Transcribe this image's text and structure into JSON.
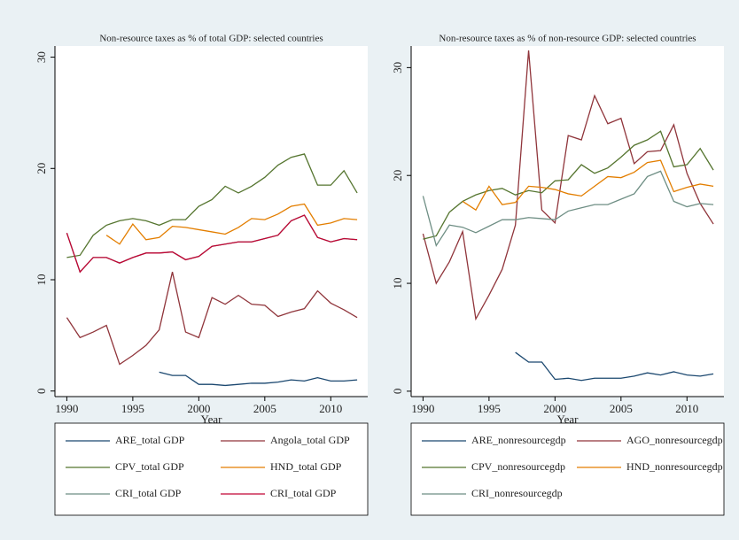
{
  "chart_data": [
    {
      "type": "line",
      "title": "Non-resource taxes as % of total GDP: selected countries",
      "x_label": "Year",
      "x": [
        1990,
        1991,
        1992,
        1993,
        1994,
        1995,
        1996,
        1997,
        1998,
        1999,
        2000,
        2001,
        2002,
        2003,
        2004,
        2005,
        2006,
        2007,
        2008,
        2009,
        2010,
        2011,
        2012
      ],
      "xlim": [
        1989.1,
        2012.8
      ],
      "xticks": [
        1990,
        1995,
        2000,
        2005,
        2010
      ],
      "ylim": [
        -0.5,
        31
      ],
      "yticks": [
        0,
        10,
        20,
        30
      ],
      "series": [
        {
          "name": "ARE_total GDP",
          "color": "#1a476f",
          "values": [
            null,
            null,
            null,
            null,
            null,
            null,
            null,
            1.7,
            1.4,
            1.4,
            0.6,
            0.6,
            0.5,
            0.6,
            0.7,
            0.7,
            0.8,
            1.0,
            0.9,
            1.2,
            0.9,
            0.9,
            1.0
          ]
        },
        {
          "name": "Angola_total GDP",
          "color": "#90353b",
          "values": [
            6.6,
            4.8,
            5.3,
            5.9,
            2.4,
            3.2,
            4.1,
            5.5,
            10.7,
            5.3,
            4.8,
            8.4,
            7.8,
            8.6,
            7.8,
            7.7,
            6.7,
            7.1,
            7.4,
            9.0,
            7.9,
            7.3,
            6.6
          ]
        },
        {
          "name": "CPV_total GDP",
          "color": "#55752f",
          "values": [
            12.0,
            12.2,
            14.0,
            14.9,
            15.3,
            15.5,
            15.3,
            14.9,
            15.4,
            15.4,
            16.6,
            17.2,
            18.4,
            17.8,
            18.4,
            19.2,
            20.3,
            21.0,
            21.3,
            18.5,
            18.5,
            19.8,
            17.8
          ]
        },
        {
          "name": "HND_total GDP",
          "color": "#e37e00",
          "values": [
            null,
            null,
            null,
            14.0,
            13.2,
            15.0,
            13.6,
            13.8,
            14.8,
            14.7,
            14.5,
            14.3,
            14.1,
            14.7,
            15.5,
            15.4,
            15.9,
            16.6,
            16.8,
            14.9,
            15.1,
            15.5,
            15.4
          ]
        },
        {
          "name": "CRI_total GDP",
          "color": "#6e8e84",
          "values": [
            14.2,
            10.7,
            12.0,
            12.0,
            11.5,
            12.0,
            12.4,
            12.4,
            12.5,
            11.8,
            12.1,
            13.0,
            13.2,
            13.4,
            13.4,
            13.7,
            14.0,
            15.3,
            15.8,
            13.8,
            13.4,
            13.7,
            13.6
          ]
        },
        {
          "name": "CRI_total GDP",
          "color": "#c10534",
          "values": [
            14.2,
            10.7,
            12.0,
            12.0,
            11.5,
            12.0,
            12.4,
            12.4,
            12.5,
            11.8,
            12.1,
            13.0,
            13.2,
            13.4,
            13.4,
            13.7,
            14.0,
            15.3,
            15.8,
            13.8,
            13.4,
            13.7,
            13.6
          ]
        }
      ]
    },
    {
      "type": "line",
      "title": "Non-resource taxes as % of non-resource GDP: selected countries",
      "x_label": "Year",
      "x": [
        1990,
        1991,
        1992,
        1993,
        1994,
        1995,
        1996,
        1997,
        1998,
        1999,
        2000,
        2001,
        2002,
        2003,
        2004,
        2005,
        2006,
        2007,
        2008,
        2009,
        2010,
        2011,
        2012
      ],
      "xlim": [
        1989.1,
        2012.8
      ],
      "xticks": [
        1990,
        1995,
        2000,
        2005,
        2010
      ],
      "ylim": [
        -0.5,
        32
      ],
      "yticks": [
        0,
        10,
        20,
        30
      ],
      "series": [
        {
          "name": "ARE_nonresourcegdp",
          "color": "#1a476f",
          "values": [
            null,
            null,
            null,
            null,
            null,
            null,
            null,
            3.6,
            2.7,
            2.7,
            1.1,
            1.2,
            1.0,
            1.2,
            1.2,
            1.2,
            1.4,
            1.7,
            1.5,
            1.8,
            1.5,
            1.4,
            1.6
          ]
        },
        {
          "name": "AGO_nonresourcegdp",
          "color": "#90353b",
          "values": [
            14.6,
            10.0,
            12.0,
            14.8,
            6.7,
            8.9,
            11.3,
            15.4,
            31.6,
            16.8,
            15.6,
            23.7,
            23.3,
            27.4,
            24.8,
            25.3,
            21.1,
            22.2,
            22.3,
            24.7,
            20.2,
            17.4,
            15.5
          ]
        },
        {
          "name": "CPV_nonresourcegdp",
          "color": "#55752f",
          "values": [
            14.1,
            14.4,
            16.6,
            17.6,
            18.2,
            18.6,
            18.8,
            18.2,
            18.6,
            18.4,
            19.5,
            19.6,
            21.0,
            20.2,
            20.7,
            21.7,
            22.8,
            23.3,
            24.1,
            20.8,
            21.0,
            22.5,
            20.5
          ]
        },
        {
          "name": "HND_nonresourcegdp",
          "color": "#e37e00",
          "values": [
            null,
            null,
            null,
            17.6,
            16.8,
            19.0,
            17.3,
            17.5,
            19.0,
            18.9,
            18.7,
            18.3,
            18.1,
            19.0,
            19.9,
            19.8,
            20.3,
            21.2,
            21.4,
            18.5,
            18.9,
            19.2,
            19.0
          ]
        },
        {
          "name": "CRI_nonresourcegdp",
          "color": "#6e8e84",
          "values": [
            18.1,
            13.5,
            15.4,
            15.2,
            14.7,
            15.3,
            15.9,
            15.9,
            16.1,
            16.0,
            15.9,
            16.7,
            17.0,
            17.3,
            17.3,
            17.8,
            18.3,
            19.9,
            20.4,
            17.6,
            17.1,
            17.4,
            17.3
          ]
        }
      ]
    }
  ]
}
